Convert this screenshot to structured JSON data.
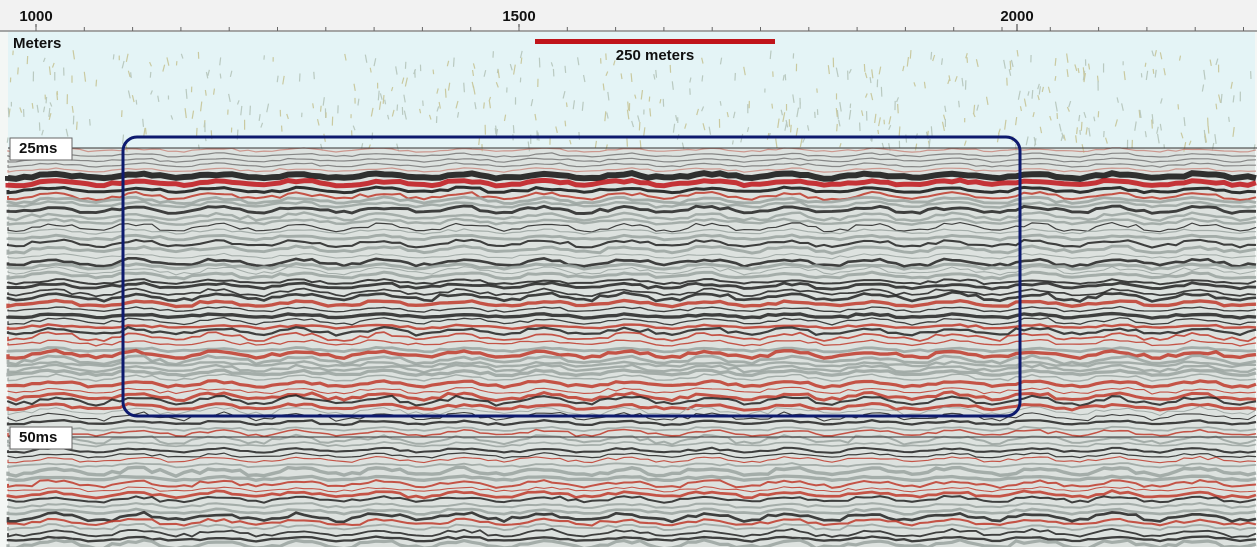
{
  "axis": {
    "title": "Meters",
    "ticks": [
      "1000",
      "1500",
      "2000"
    ]
  },
  "scale_bar": {
    "label": "250 meters"
  },
  "time_labels": [
    "25ms",
    "50ms"
  ]
}
